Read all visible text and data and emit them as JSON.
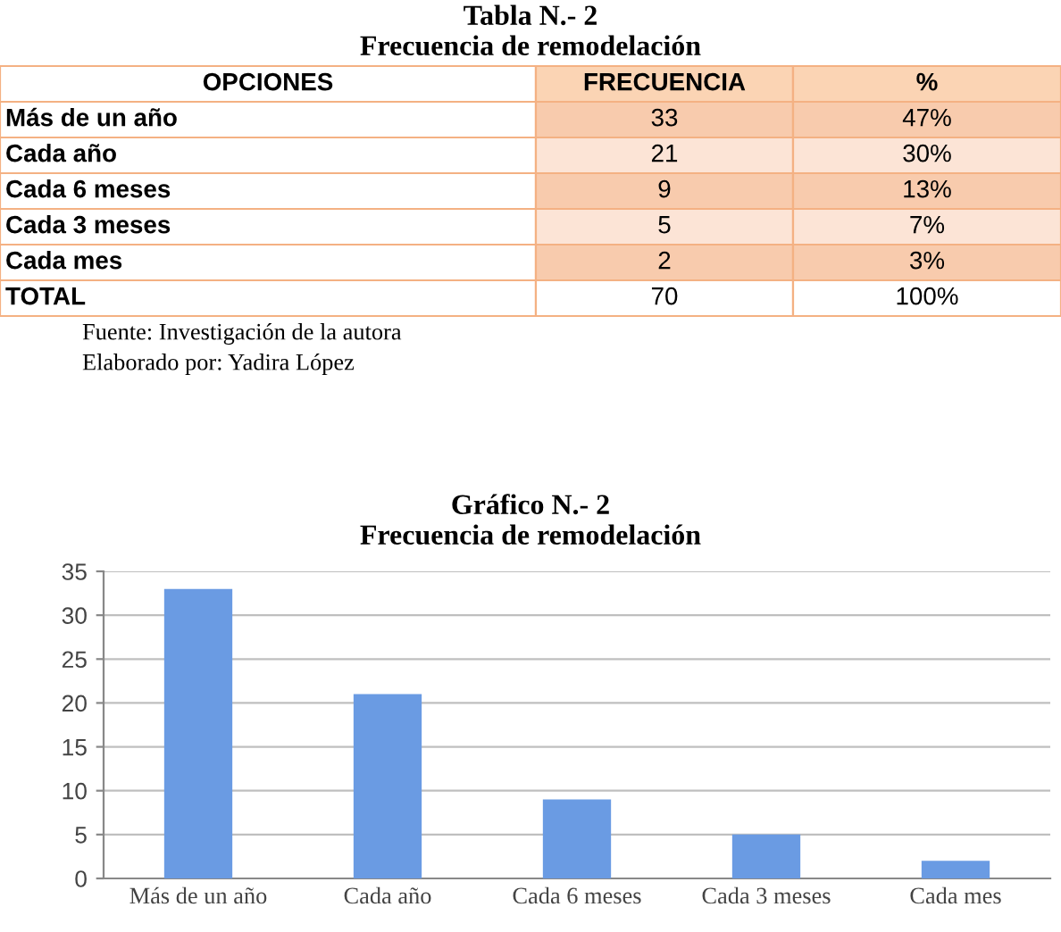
{
  "chart_data": [
    {
      "type": "other",
      "title": "Tabla N.- 2",
      "subtitle": "Frecuencia de remodelación",
      "ylabel": "OPCIONES",
      "categories": [
        "FRECUENCIA",
        "%"
      ],
      "y_categories": [
        "Más de un año",
        "Cada año",
        "Cada 6 meses",
        "Cada 3 meses",
        "Cada mes",
        "TOTAL"
      ],
      "cell_labels": [
        [
          "33",
          "47%"
        ],
        [
          "21",
          "30%"
        ],
        [
          "9",
          "13%"
        ],
        [
          "5",
          "7%"
        ],
        [
          "2",
          "3%"
        ],
        [
          "70",
          "100%"
        ]
      ],
      "annotations": [
        "Fuente: Investigación de la autora",
        "Elaborado por: Yadira López"
      ]
    },
    {
      "type": "bar",
      "title": "Gráfico N.- 2",
      "subtitle": "Frecuencia de remodelación",
      "categories": [
        "Más de un año",
        "Cada año",
        "Cada 6 meses",
        "Cada 3 meses",
        "Cada mes"
      ],
      "values": [
        33,
        21,
        9,
        5,
        2
      ],
      "color": "#6a9be3",
      "ylim": [
        0,
        35
      ],
      "yticks": [
        0,
        5,
        10,
        15,
        20,
        25,
        30,
        35
      ],
      "grid": "y"
    }
  ]
}
